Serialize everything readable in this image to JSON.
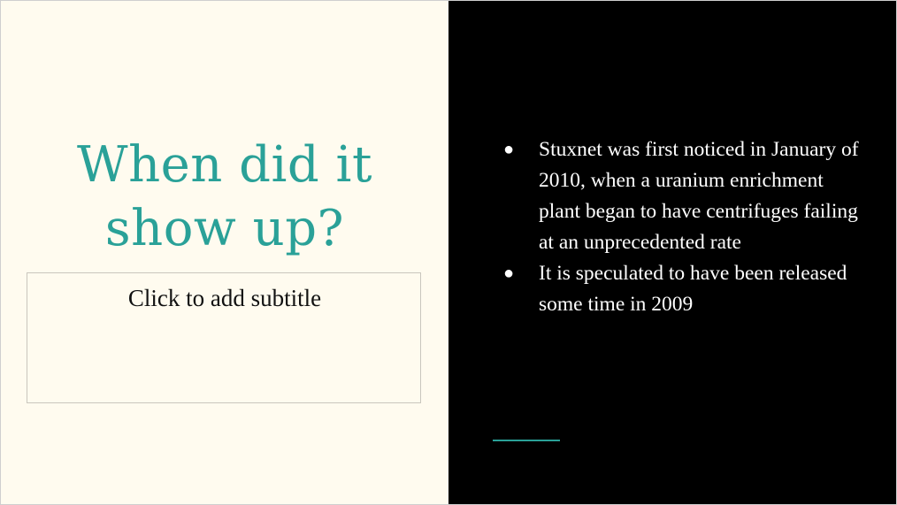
{
  "slide": {
    "title": "When did it show up?",
    "subtitle_placeholder": "Click to add subtitle",
    "bullets": [
      {
        "marker": "●",
        "text": "Stuxnet was first noticed in January of 2010, when a uranium enrichment plant began to have centrifuges failing at an unprecedented rate"
      },
      {
        "marker": "●",
        "text": "It is speculated to have been released some time in 2009"
      }
    ]
  },
  "colors": {
    "left_background": "#fffbef",
    "right_background": "#000000",
    "title": "#2aa198",
    "accent_line": "#2aa198",
    "body_text": "#ffffff"
  }
}
